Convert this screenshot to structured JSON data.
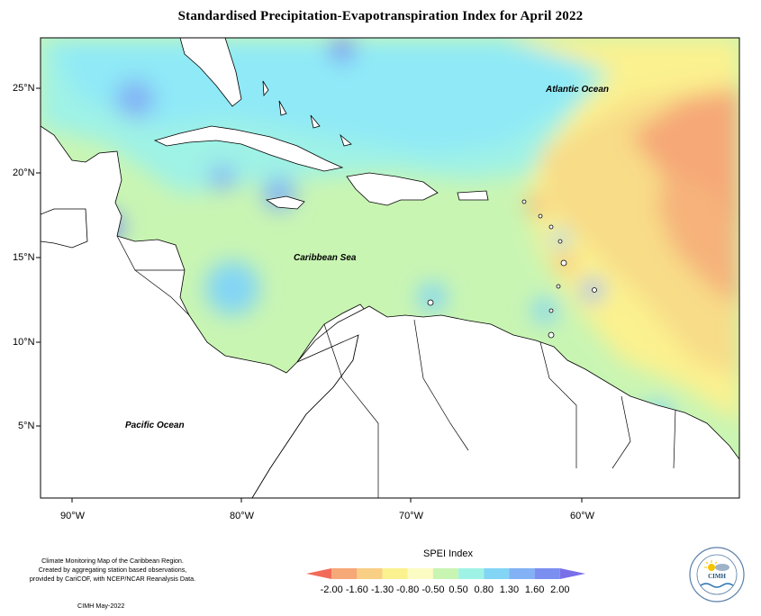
{
  "title": "Standardised Precipitation-Evapotranspiration Index for April 2022",
  "axes": {
    "lat_labels": [
      "25°N",
      "20°N",
      "15°N",
      "10°N",
      "5°N"
    ],
    "lon_labels": [
      "90°W",
      "80°W",
      "70°W",
      "60°W"
    ]
  },
  "place_labels": {
    "atlantic": "Atlantic Ocean",
    "caribbean": "Caribbean Sea",
    "pacific": "Pacific Ocean"
  },
  "credits": {
    "line1": "Climate Monitoring Map of the Caribbean Region.",
    "line2": "Created by aggregating station based observations,",
    "line3": "provided by CariCOF, with NCEP/NCAR Reanalysis Data.",
    "date": "CIMH May-2022"
  },
  "legend": {
    "title": "SPEI Index",
    "ticks": [
      "-2.00",
      "-1.60",
      "-1.30",
      "-0.80",
      "-0.50",
      "0.50",
      "0.80",
      "1.30",
      "1.60",
      "2.00"
    ],
    "colors": [
      "#f26b5a",
      "#f6a877",
      "#f8cf85",
      "#fbf18f",
      "#fbfbc4",
      "#c9f5b3",
      "#9ff2e6",
      "#82d5f5",
      "#82b2f5",
      "#7a8ff0",
      "#7a6fe9"
    ]
  },
  "logo": {
    "name": "CIMH",
    "ring_text": "Caribbean Institute for Meteorology and Hydrology"
  }
}
